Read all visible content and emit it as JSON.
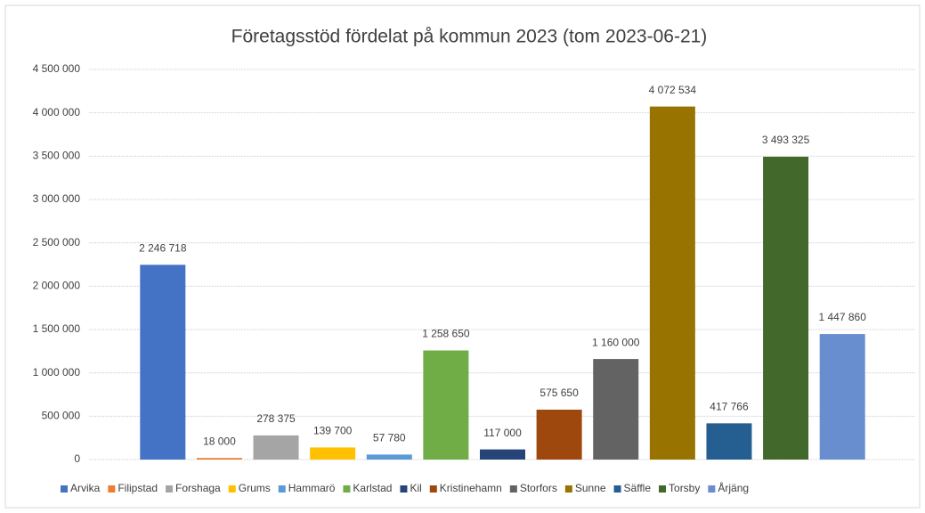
{
  "chart_data": {
    "type": "bar",
    "title": "Företagsstöd fördelat på kommun 2023 (tom 2023-06-21)",
    "categories": [
      "Arvika",
      "Filipstad",
      "Forshaga",
      "Grums",
      "Hammarö",
      "Karlstad",
      "Kil",
      "Kristinehamn",
      "Storfors",
      "Sunne",
      "Säffle",
      "Torsby",
      "Årjäng"
    ],
    "values": [
      2246718,
      18000,
      278375,
      139700,
      57780,
      1258650,
      117000,
      575650,
      1160000,
      4072534,
      417766,
      3493325,
      1447860
    ],
    "value_labels": [
      "2 246 718",
      "18 000",
      "278 375",
      "139 700",
      "57 780",
      "1 258 650",
      "117 000",
      "575 650",
      "1 160 000",
      "4 072 534",
      "417 766",
      "3 493 325",
      "1 447 860"
    ],
    "colors": [
      "#4472c4",
      "#ed7d31",
      "#a5a5a5",
      "#ffc000",
      "#5b9bd5",
      "#70ad47",
      "#264478",
      "#9e480e",
      "#636363",
      "#997300",
      "#255e91",
      "#43682b",
      "#698ed0"
    ],
    "ylim": [
      0,
      4500000
    ],
    "yticks": [
      0,
      {
        "value": 500000,
        "label": "500 000"
      },
      {
        "value": 1000000,
        "label": "1 000 000"
      },
      {
        "value": 1500000,
        "label": "1 500 000"
      },
      {
        "value": 2000000,
        "label": "2 000 000"
      },
      {
        "value": 2500000,
        "label": "2 500 000"
      },
      {
        "value": 3000000,
        "label": "3 000 000"
      },
      {
        "value": 3500000,
        "label": "3 500 000"
      },
      {
        "value": 4000000,
        "label": "4 000 000"
      },
      {
        "value": 4500000,
        "label": "4 500 000"
      }
    ],
    "grid": true,
    "legend": "bottom"
  }
}
